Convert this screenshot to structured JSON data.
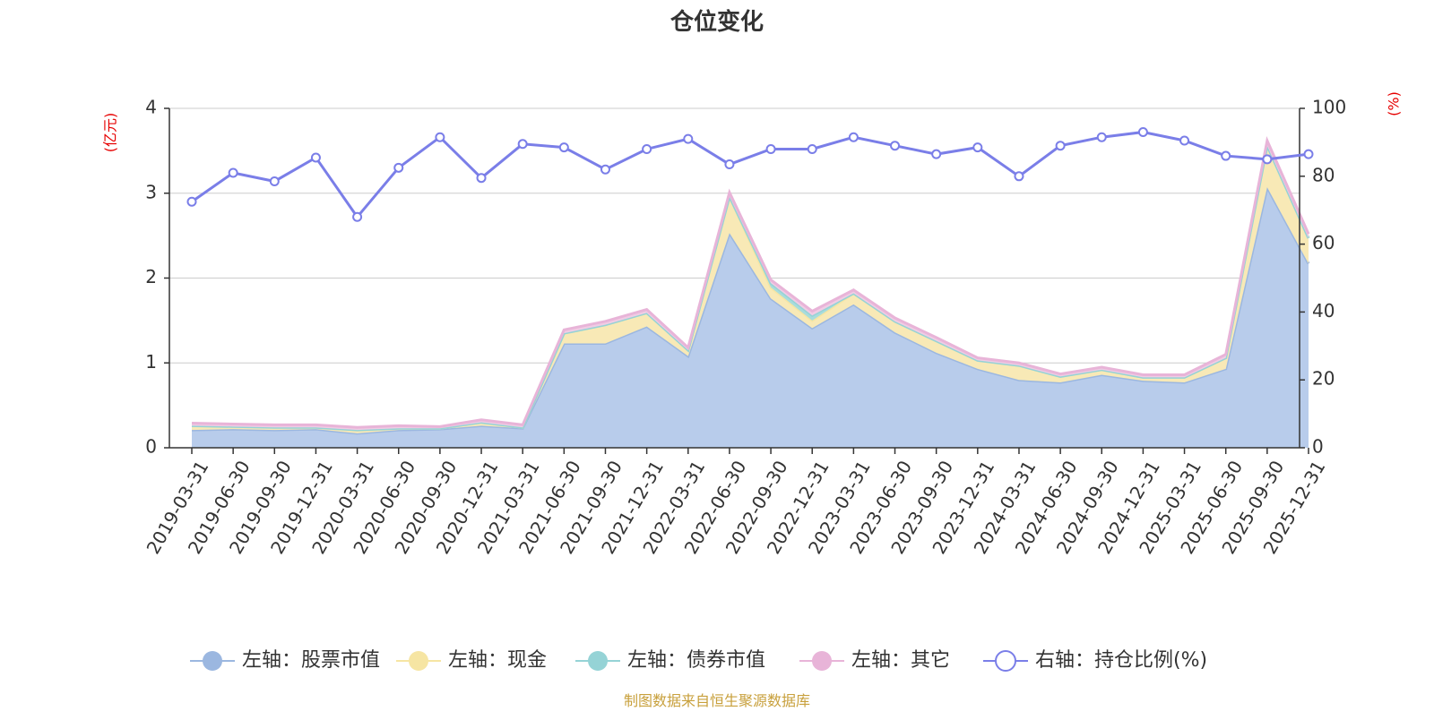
{
  "chart_data": {
    "type": "area",
    "title": "仓位变化",
    "left_axis": {
      "unit": "(亿元)",
      "range": [
        0,
        4
      ],
      "ticks": [
        "0",
        "1",
        "2",
        "3",
        "4"
      ]
    },
    "right_axis": {
      "unit": "(%)",
      "range": [
        0,
        100
      ],
      "ticks": [
        "0",
        "20",
        "40",
        "60",
        "80",
        "100"
      ]
    },
    "x_tick_labels": [
      "2019-03-31",
      "2019-06-30",
      "2019-09-30",
      "2019-12-31",
      "2020-03-31",
      "2020-06-30",
      "2020-09-30",
      "2020-12-31",
      "2021-03-31",
      "2021-06-30",
      "2021-09-30",
      "2021-12-31",
      "2022-03-31",
      "2022-06-30",
      "2022-09-30",
      "2022-12-31",
      "2023-03-31",
      "2023-06-30",
      "2023-09-30",
      "2023-12-31",
      "2024-03-31",
      "2024-06-30",
      "2024-09-30",
      "2024-12-31",
      "2025-03-31",
      "2025-06-30",
      "2025-09-30",
      "2025-12-31"
    ],
    "grid": true,
    "stacked": true,
    "series": [
      {
        "name": "左轴：股票市值",
        "axis": "left",
        "color": "#9bb7e0",
        "fill": "#b8cceb",
        "values": [
          0.21,
          0.22,
          0.21,
          0.22,
          0.17,
          0.21,
          0.22,
          0.26,
          0.23,
          1.23,
          1.23,
          1.43,
          1.08,
          2.53,
          1.76,
          1.41,
          1.69,
          1.36,
          1.12,
          0.93,
          0.8,
          0.77,
          0.86,
          0.79,
          0.77,
          0.93,
          3.07,
          2.17
        ]
      },
      {
        "name": "左轴：现金",
        "axis": "left",
        "color": "#f6e5a3",
        "fill": "#f8e9b6",
        "values": [
          0.05,
          0.03,
          0.03,
          0.02,
          0.04,
          0.02,
          0.01,
          0.04,
          0.01,
          0.12,
          0.22,
          0.16,
          0.07,
          0.43,
          0.13,
          0.09,
          0.13,
          0.13,
          0.14,
          0.1,
          0.17,
          0.07,
          0.06,
          0.04,
          0.06,
          0.13,
          0.49,
          0.3
        ]
      },
      {
        "name": "左轴：债券市值",
        "axis": "left",
        "color": "#95d3d6",
        "fill": "#a8dcdc",
        "values": [
          0,
          0,
          0,
          0,
          0,
          0,
          0,
          0,
          0,
          0,
          0,
          0,
          0,
          0,
          0.05,
          0.06,
          0,
          0,
          0,
          0,
          0,
          0,
          0,
          0,
          0,
          0,
          0,
          0
        ]
      },
      {
        "name": "左轴：其它",
        "axis": "left",
        "color": "#e8b4d8",
        "fill": "#f0cce4",
        "values": [
          0.03,
          0.03,
          0.03,
          0.03,
          0.03,
          0.03,
          0.02,
          0.03,
          0.03,
          0.04,
          0.04,
          0.04,
          0.03,
          0.05,
          0.04,
          0.05,
          0.04,
          0.04,
          0.04,
          0.03,
          0.03,
          0.03,
          0.03,
          0.03,
          0.03,
          0.04,
          0.06,
          0.05
        ]
      },
      {
        "name": "右轴：持仓比例(%)",
        "axis": "right",
        "color": "#7a7ee8",
        "values": [
          72.5,
          81.0,
          78.5,
          85.5,
          68.0,
          82.5,
          91.5,
          79.5,
          89.5,
          88.5,
          82.0,
          88.0,
          91.0,
          83.5,
          88.0,
          88.0,
          91.5,
          89.0,
          86.5,
          88.5,
          80.0,
          89.0,
          91.5,
          93.0,
          90.5,
          86.0,
          85.0,
          86.5
        ]
      }
    ],
    "legend_position": "bottom-center"
  },
  "source_text": "制图数据来自恒生聚源数据库"
}
